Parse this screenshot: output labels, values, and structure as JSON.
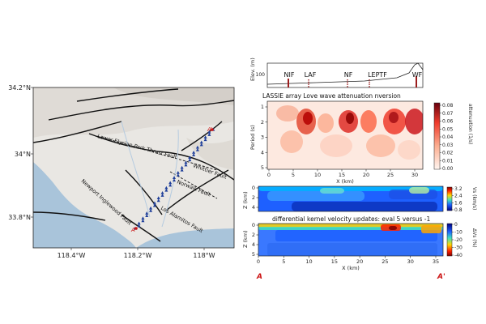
{
  "map": {
    "lat_labels": [
      "34.2°N",
      "34°N",
      "33.8°N"
    ],
    "lon_labels": [
      "118.4°W",
      "118.2°W",
      "118°W"
    ],
    "fault_labels": [
      "Lower Elysian Park Thrust Fault",
      "Whittier Fault",
      "Norwalk Fault",
      "Newport Inglewood Fault",
      "Los Alamitos Fault"
    ],
    "profile_start": "A",
    "profile_end": "A'",
    "colors": {
      "land": "#e9e7e3",
      "ocean": "#a9c4da",
      "station": "#1f3f9a",
      "profile_end": "#cc1111"
    }
  },
  "elevation_panel": {
    "ylabel": "Elev. (m)",
    "tick_label": "100",
    "fault_labels": [
      "NIF",
      "LAF",
      "NF",
      "LEPTF",
      "WF"
    ]
  },
  "attenuation_panel": {
    "title": "LASSIE array Love wave attenuation  nversion",
    "ylabel": "Period (s)",
    "xlabel": "X (km)",
    "cbar_label": "attenuation (1/s)",
    "cbar_ticks": [
      "0.08",
      "0.07",
      "0.06",
      "0.05",
      "0.04",
      "0.03",
      "0.02",
      "0.01",
      "0.00"
    ]
  },
  "velocity_panel": {
    "ylabel": "Z (km)",
    "cbar_label": "Vs (km/s)",
    "cbar_ticks": [
      "3.2",
      "2.4",
      "1.6",
      "0.8"
    ]
  },
  "update_panel": {
    "title": "differential kernel velocity updates: eval 5 versus -1",
    "ylabel": "Z (km)",
    "xlabel": "X (km)",
    "cbar_label": "ΔVs (%)",
    "cbar_ticks": [
      "0",
      "-10",
      "-20",
      "-30",
      "-40"
    ],
    "profile_start": "A",
    "profile_end": "A'"
  },
  "chart_data": {
    "type": "heatmap",
    "x_range_km": [
      0,
      37
    ],
    "attenuation": {
      "x_ticks": [
        "0",
        "5",
        "10",
        "15",
        "20",
        "25",
        "30"
      ],
      "y_ticks": [
        "1",
        "2",
        "3",
        "4",
        "5"
      ],
      "clim": [
        0,
        0.08
      ]
    },
    "velocity": {
      "y_ticks": [
        "0",
        "2",
        "4"
      ],
      "clim": [
        0.8,
        3.2
      ]
    },
    "update": {
      "x_ticks": [
        "0",
        "5",
        "10",
        "15",
        "20",
        "25",
        "30",
        "35"
      ],
      "y_ticks": [
        "0",
        "2",
        "4",
        "5"
      ],
      "clim": [
        -40,
        0
      ]
    }
  }
}
